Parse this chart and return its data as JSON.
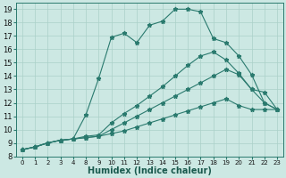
{
  "bg_color": "#cce8e3",
  "line_color": "#2a7a6e",
  "grid_color": "#aad0c8",
  "xlabel": "Humidex (Indice chaleur)",
  "xlabel_fontsize": 7,
  "ylim": [
    8.0,
    19.5
  ],
  "yticks": [
    8,
    9,
    10,
    11,
    12,
    13,
    14,
    15,
    16,
    17,
    18,
    19
  ],
  "xtick_labels": [
    "0",
    "1",
    "2",
    "3",
    "4",
    "8",
    "9",
    "10",
    "11",
    "12",
    "13",
    "14",
    "15",
    "16",
    "17",
    "18",
    "19",
    "20",
    "21",
    "22",
    "23"
  ],
  "series": [
    {
      "y": [
        8.5,
        8.7,
        9.0,
        9.2,
        9.3,
        11.1,
        13.8,
        16.9,
        17.2,
        16.5,
        17.8,
        18.1,
        19.0,
        19.0,
        18.8,
        16.8,
        16.5,
        15.5,
        14.1,
        12.0,
        11.5
      ]
    },
    {
      "y": [
        8.5,
        8.7,
        9.0,
        9.2,
        9.3,
        9.5,
        9.6,
        10.5,
        11.2,
        11.8,
        12.5,
        13.2,
        14.0,
        14.8,
        15.5,
        15.8,
        15.2,
        14.2,
        13.0,
        12.8,
        11.5
      ]
    },
    {
      "y": [
        8.5,
        8.7,
        9.0,
        9.2,
        9.3,
        9.4,
        9.5,
        10.0,
        10.5,
        11.0,
        11.5,
        12.0,
        12.5,
        13.0,
        13.5,
        14.0,
        14.5,
        14.1,
        13.0,
        12.0,
        11.5
      ]
    },
    {
      "y": [
        8.5,
        8.7,
        9.0,
        9.2,
        9.3,
        9.4,
        9.5,
        9.7,
        9.9,
        10.2,
        10.5,
        10.8,
        11.1,
        11.4,
        11.7,
        12.0,
        12.3,
        11.8,
        11.5,
        11.5,
        11.5
      ]
    }
  ]
}
